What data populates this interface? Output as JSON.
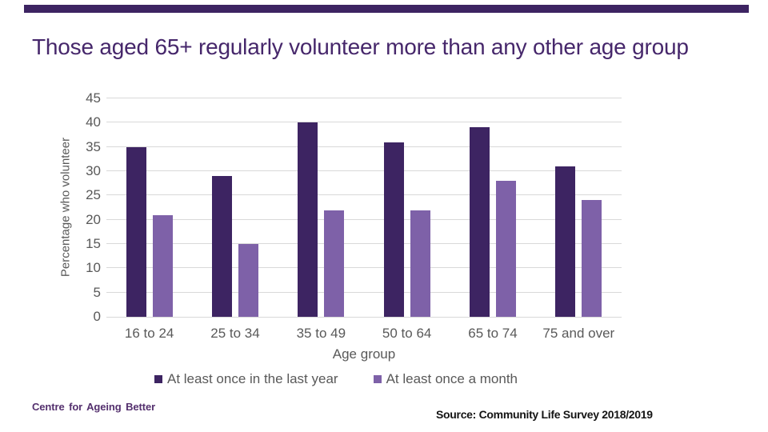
{
  "slide": {
    "title": "Those aged 65+ regularly volunteer more than any other age group",
    "accent_color": "#3D2462"
  },
  "chart_data": {
    "type": "bar",
    "title": "Those aged 65+ regularly volunteer more than any other age group",
    "categories": [
      "16 to 24",
      "25 to 34",
      "35 to 49",
      "50 to 64",
      "65 to 74",
      "75 and over"
    ],
    "series": [
      {
        "name": "At least once in the last year",
        "color": "#3D2462",
        "values": [
          35,
          29,
          40,
          36,
          39,
          31
        ]
      },
      {
        "name": "At least once a month",
        "color": "#7E61A8",
        "values": [
          21,
          15,
          22,
          22,
          28,
          24
        ]
      }
    ],
    "xlabel": "Age group",
    "ylabel": "Percentage who volunteer",
    "ylim": [
      0,
      45
    ],
    "ytick_step": 5,
    "grid": true,
    "gridline_color": "#D9D9D9",
    "axis_text_color": "#595959",
    "legend_position": "bottom"
  },
  "footer": {
    "brand": "Centre for Ageing Better",
    "source": "Source: Community Life Survey 2018/2019"
  }
}
